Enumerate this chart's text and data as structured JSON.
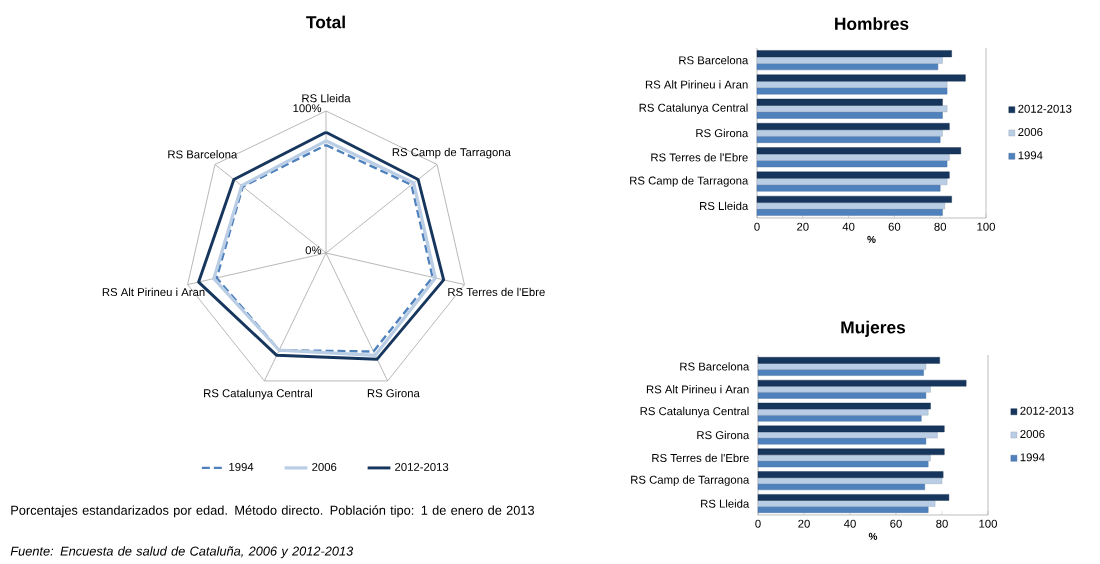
{
  "chart_data": [
    {
      "type": "radar",
      "title": "Total",
      "categories": [
        "RS Lleida",
        "RS Camp de Tarragona",
        "RS Terres de l'Ebre",
        "RS Girona",
        "RS Catalunya Central",
        "RS Alt Pirineu i Aran",
        "RS Barcelona"
      ],
      "series": [
        {
          "name": "1994",
          "color": "#4f81bd",
          "line_style": "dashed",
          "values": [
            76,
            77,
            77,
            77,
            76,
            79,
            75
          ]
        },
        {
          "name": "2006",
          "color": "#b9cde5",
          "line_style": "solid",
          "values": [
            79,
            79,
            79,
            80,
            76,
            81,
            76
          ]
        },
        {
          "name": "2012-2013",
          "color": "#17365d",
          "line_style": "solid",
          "values": [
            85,
            83,
            85,
            83,
            80,
            92,
            83
          ]
        }
      ],
      "ylim": [
        0,
        100
      ],
      "yticks": [
        {
          "value": 0,
          "label": "0%"
        },
        {
          "value": 100,
          "label": "100%"
        }
      ],
      "grid": true,
      "legend": "bottom",
      "annotations": [
        "Porcentajes estandarizados por edad. Método directo. Población tipo: 1 de enero de 2013",
        "Fuente: Encuesta de salud de Cataluña, 2006 y 2012-2013"
      ]
    },
    {
      "type": "bar",
      "orientation": "horizontal",
      "title": "Hombres",
      "xlabel": "%",
      "categories": [
        "RS Barcelona",
        "RS Alt Pirineu i Aran",
        "RS Catalunya Central",
        "RS Girona",
        "RS Terres de l'Ebre",
        "RS Camp de Tarragona",
        "RS Lleida"
      ],
      "series": [
        {
          "name": "1994",
          "color": "#4f81bd",
          "values": [
            79,
            83,
            81,
            80,
            83,
            80,
            81
          ]
        },
        {
          "name": "2006",
          "color": "#b9cde5",
          "values": [
            81,
            83,
            83,
            81,
            84,
            83,
            82
          ]
        },
        {
          "name": "2012-2013",
          "color": "#17365d",
          "values": [
            85,
            91,
            81,
            84,
            89,
            84,
            85
          ]
        }
      ],
      "xlim": [
        0,
        100
      ],
      "xticks": [
        0,
        20,
        40,
        60,
        80,
        100
      ],
      "legend": "right"
    },
    {
      "type": "bar",
      "orientation": "horizontal",
      "title": "Mujeres",
      "xlabel": "%",
      "categories": [
        "RS Barcelona",
        "RS Alt Pirineu i Aran",
        "RS Catalunya Central",
        "RS Girona",
        "RS Terres de l'Ebre",
        "RS Camp de Tarragona",
        "RS Lleida"
      ],
      "series": [
        {
          "name": "1994",
          "color": "#4f81bd",
          "values": [
            72,
            73,
            71,
            73,
            74,
            72.5,
            74
          ]
        },
        {
          "name": "2006",
          "color": "#b9cde5",
          "values": [
            73,
            75,
            74,
            78,
            75,
            80,
            77
          ]
        },
        {
          "name": "2012-2013",
          "color": "#17365d",
          "values": [
            79,
            90.5,
            75,
            81,
            81,
            80.5,
            83
          ]
        }
      ],
      "xlim": [
        0,
        100
      ],
      "xticks": [
        0,
        20,
        40,
        60,
        80,
        100
      ],
      "legend": "right"
    }
  ]
}
